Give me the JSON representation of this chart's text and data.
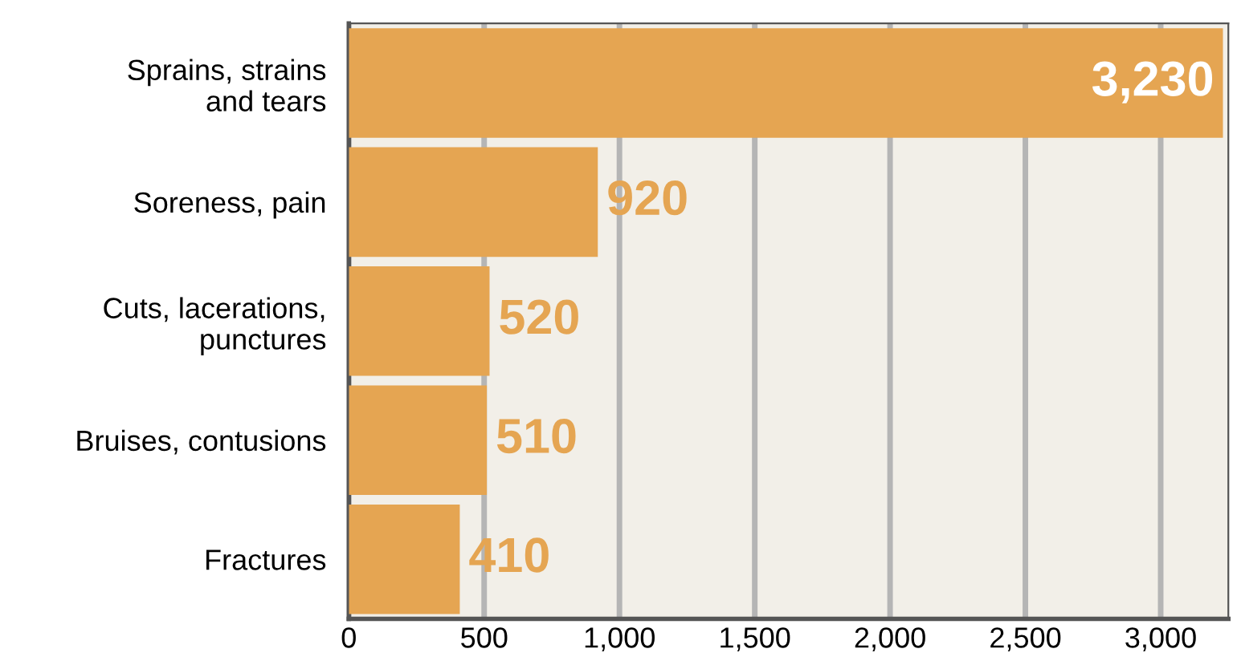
{
  "chart_data": {
    "type": "bar",
    "orientation": "horizontal",
    "categories": [
      "Sprains, strains\nand tears",
      "Soreness, pain",
      "Cuts, lacerations,\npunctures",
      "Bruises, contusions",
      "Fractures"
    ],
    "values": [
      3230,
      920,
      520,
      510,
      410
    ],
    "value_labels": [
      "3,230",
      "920",
      "520",
      "510",
      "410"
    ],
    "color": "#e5a552",
    "xlim": [
      0,
      3250
    ],
    "xticks": [
      0,
      500,
      {
        "value": 1000,
        "label": "1,000"
      },
      {
        "value": 1500,
        "label": "1,500"
      },
      {
        "value": 2000,
        "label": "2,000"
      },
      {
        "value": 2500,
        "label": "2,500"
      },
      {
        "value": 3000,
        "label": "3,000"
      }
    ],
    "grid": "x"
  }
}
